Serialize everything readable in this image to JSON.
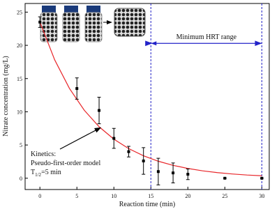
{
  "chart_data": {
    "type": "scatter",
    "x_label": "Reaction time (min)",
    "y_label": "Nitrate concentration (mg/L)",
    "x": [
      0,
      5,
      8,
      10,
      12,
      14,
      16,
      18,
      20,
      25,
      30
    ],
    "values": [
      23.5,
      13.5,
      10.2,
      6,
      4,
      2.6,
      1,
      0.8,
      0.6,
      0,
      0
    ],
    "errors": [
      0.8,
      1.6,
      2,
      1.5,
      0.8,
      2,
      2,
      1.5,
      0.8,
      0,
      0
    ],
    "color": "#000000",
    "fit": {
      "color": "#e8262a",
      "x": [
        0,
        2,
        4,
        6,
        8,
        10,
        12,
        14,
        16,
        18,
        20,
        22,
        24,
        26,
        28,
        30
      ],
      "values": [
        23.5,
        17.81,
        13.5,
        10.23,
        7.75,
        5.88,
        4.46,
        3.38,
        2.56,
        1.94,
        1.47,
        1.11,
        0.84,
        0.64,
        0.48,
        0.37
      ]
    },
    "range": {
      "label": "Minimum HRT range",
      "x": [
        15,
        30
      ],
      "level": 20.3,
      "color": "#2323c8"
    },
    "kinetics": {
      "lines": [
        "Kinetics:",
        "Pseudo-first-order model"
      ],
      "symbol": "T",
      "subscript": "1/2",
      "rest": "=5 min",
      "arrow_to": [
        8.2,
        7.6
      ]
    },
    "xlim": [
      -2,
      31
    ],
    "ylim": [
      -1.7,
      26.3
    ],
    "xticks": [
      0,
      5,
      10,
      15,
      20,
      25,
      30
    ],
    "yticks": [
      0,
      5,
      10,
      15,
      20,
      25
    ]
  }
}
